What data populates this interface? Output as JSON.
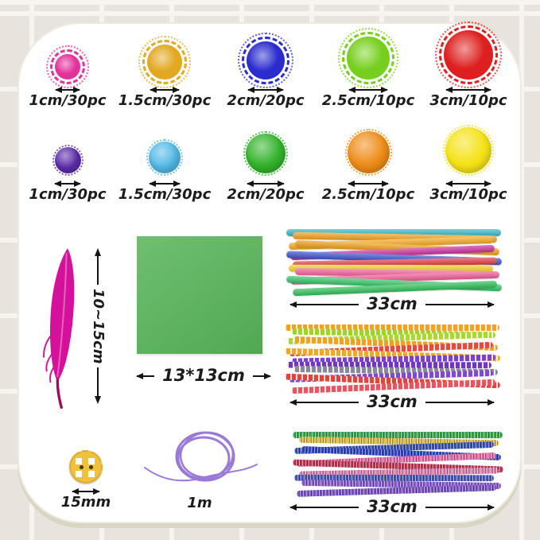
{
  "colors": {
    "background": "#e9e3dd",
    "card": "#ffffff",
    "dimension_text": "#1c1c1c"
  },
  "card": {
    "glitter_poms": [
      {
        "label": "1cm/30pc",
        "color": "#e3339b"
      },
      {
        "label": "1.5cm/30pc",
        "color": "#e2a81f"
      },
      {
        "label": "2cm/20pc",
        "color": "#2a2ccd"
      },
      {
        "label": "2.5cm/10pc",
        "color": "#76cf1e"
      },
      {
        "label": "3cm/10pc",
        "color": "#de1f1f"
      }
    ],
    "plain_poms": [
      {
        "label": "1cm/30pc",
        "color": "#5d2cab"
      },
      {
        "label": "1.5cm/30pc",
        "color": "#54b9e6"
      },
      {
        "label": "2cm/20pc",
        "color": "#33b32c"
      },
      {
        "label": "2.5cm/10pc",
        "color": "#ee8c18"
      },
      {
        "label": "3cm/10pc",
        "color": "#f5e216"
      }
    ],
    "feather": {
      "label": "10~15cm",
      "color": "#d5119c",
      "quill_color": "#a00d55"
    },
    "paper": {
      "label": "13*13cm",
      "color": "#57b559"
    },
    "bundles": [
      {
        "label": "33cm",
        "style": "solid",
        "strands": [
          "#35b8c8",
          "#f2a01c",
          "#f5a922",
          "#ef9f18",
          "#cc2f9e",
          "#3853cd",
          "#e23a44",
          "#f2d22a",
          "#f2609a",
          "#ef5a95",
          "#35c468",
          "#2fbf58"
        ]
      },
      {
        "label": "33cm",
        "style": "striped",
        "strands": [
          "#f5a01e",
          "#9ed32a",
          "#aad82e",
          "#f2a01e",
          "#e84840",
          "#f0a825",
          "#7a41cc",
          "#6f38c4",
          "#8a8a96",
          "#8049d2",
          "#e0453c",
          "#e85560"
        ]
      },
      {
        "label": "33cm",
        "style": "glitter",
        "strands": [
          "#2eb34a",
          "#dfc02c",
          "#3a50c4",
          "#2f46bd",
          "#e270a8",
          "#d62f58",
          "#e97fb2",
          "#4a58c8",
          "#8a5fc6",
          "#7d54bd"
        ]
      }
    ],
    "button": {
      "label": "15mm",
      "color": "#eec23c"
    },
    "cord": {
      "label": "1m",
      "color": "#9b79d6"
    }
  }
}
